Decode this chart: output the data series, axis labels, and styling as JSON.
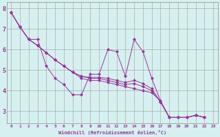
{
  "xlabel": "Windchill (Refroidissement éolien,°C)",
  "background_color": "#d6f0f0",
  "grid_color": "#aaaaaa",
  "line_color": "#993399",
  "series": [
    [
      7.8,
      7.1,
      6.5,
      6.5,
      5.2,
      4.6,
      4.3,
      3.8,
      3.8,
      4.8,
      4.8,
      6.0,
      5.9,
      4.7,
      6.5,
      5.9,
      4.6,
      3.5,
      2.7,
      2.7,
      2.7,
      2.8,
      2.7
    ],
    [
      7.8,
      7.1,
      6.5,
      6.2,
      5.85,
      5.5,
      5.2,
      4.9,
      4.6,
      4.5,
      4.5,
      4.4,
      4.3,
      4.2,
      4.1,
      4.0,
      3.9,
      3.5,
      2.7,
      2.7,
      2.7,
      2.8,
      2.7
    ],
    [
      7.8,
      7.1,
      6.5,
      6.2,
      5.85,
      5.5,
      5.2,
      4.9,
      4.7,
      4.6,
      4.6,
      4.5,
      4.4,
      4.3,
      4.35,
      4.2,
      4.0,
      3.45,
      2.7,
      2.7,
      2.7,
      2.8,
      2.7
    ],
    [
      7.8,
      7.1,
      6.5,
      6.2,
      5.85,
      5.5,
      5.2,
      4.9,
      4.7,
      4.65,
      4.65,
      4.6,
      4.5,
      4.4,
      4.5,
      4.35,
      4.1,
      3.45,
      2.7,
      2.7,
      2.7,
      2.8,
      2.7
    ]
  ],
  "x_values": [
    0,
    1,
    2,
    3,
    4,
    5,
    6,
    7,
    8,
    9,
    10,
    11,
    12,
    13,
    14,
    15,
    16,
    17,
    18,
    19,
    20,
    21,
    22
  ],
  "ylim": [
    2.4,
    8.3
  ],
  "yticks": [
    3,
    4,
    5,
    6,
    7,
    8
  ],
  "xtick_labels": [
    "0",
    "1",
    "2",
    "3",
    "4",
    "5",
    "6",
    "7",
    "8",
    "9",
    "10",
    "11",
    "12",
    "13",
    "14",
    "15",
    "16",
    "17",
    "18",
    "19",
    "20",
    "21",
    "22",
    "23"
  ],
  "figwidth": 3.2,
  "figheight": 2.0,
  "dpi": 100
}
